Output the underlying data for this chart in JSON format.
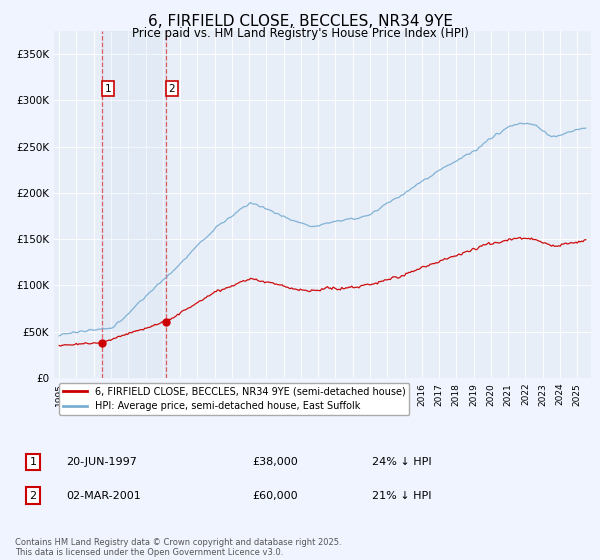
{
  "title": "6, FIRFIELD CLOSE, BECCLES, NR34 9YE",
  "subtitle": "Price paid vs. HM Land Registry's House Price Index (HPI)",
  "title_fontsize": 11,
  "background_color": "#f0f4ff",
  "plot_bg_color": "#e8eef8",
  "ylim": [
    0,
    375000
  ],
  "yticks": [
    0,
    50000,
    100000,
    150000,
    200000,
    250000,
    300000,
    350000
  ],
  "ytick_labels": [
    "£0",
    "£50K",
    "£100K",
    "£150K",
    "£200K",
    "£250K",
    "£300K",
    "£350K"
  ],
  "legend_entry1": "6, FIRFIELD CLOSE, BECCLES, NR34 9YE (semi-detached house)",
  "legend_entry2": "HPI: Average price, semi-detached house, East Suffolk",
  "sale1_date": "20-JUN-1997",
  "sale1_price": 38000,
  "sale1_label": "1",
  "sale1_pct": "24% ↓ HPI",
  "sale2_date": "02-MAR-2001",
  "sale2_price": 60000,
  "sale2_label": "2",
  "sale2_pct": "21% ↓ HPI",
  "footer": "Contains HM Land Registry data © Crown copyright and database right 2025.\nThis data is licensed under the Open Government Licence v3.0.",
  "red_line_color": "#cc0000",
  "blue_line_color": "#7bafd4",
  "vline_color": "#dd4444",
  "marker_color": "#cc0000",
  "sale1_year": 1997.47,
  "sale2_year": 2001.17,
  "xmin": 1994.7,
  "xmax": 2025.8
}
